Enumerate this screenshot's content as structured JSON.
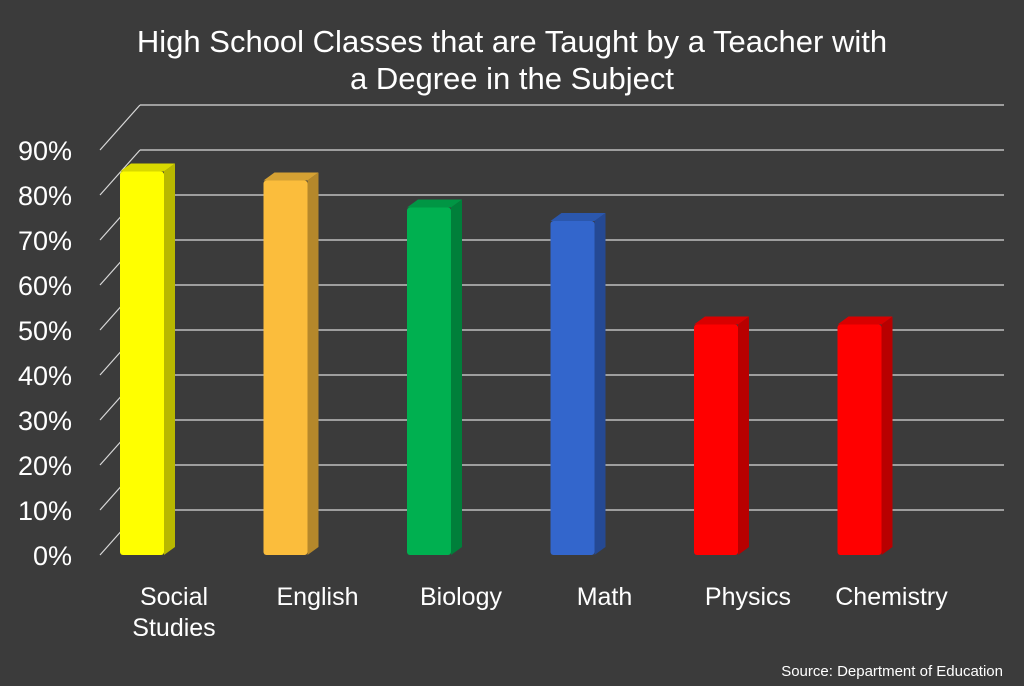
{
  "chart_data": {
    "type": "bar",
    "title_lines": [
      "High School Classes that are Taught by a Teacher with",
      "a Degree in the Subject"
    ],
    "categories": [
      [
        "Social",
        "Studies"
      ],
      [
        "English"
      ],
      [
        "Biology"
      ],
      [
        "Math"
      ],
      [
        "Physics"
      ],
      [
        "Chemistry"
      ]
    ],
    "values": [
      81,
      79,
      73,
      70,
      47,
      47
    ],
    "colors": [
      "#ffff00",
      "#fbbd3c",
      "#00b050",
      "#3366cc",
      "#ff0000",
      "#ff0000"
    ],
    "y_ticks": [
      "0%",
      "10%",
      "20%",
      "30%",
      "40%",
      "50%",
      "60%",
      "70%",
      "80%",
      "90%"
    ],
    "ylim": [
      0,
      90
    ],
    "grid": true,
    "source": "Source: Department of Education"
  }
}
